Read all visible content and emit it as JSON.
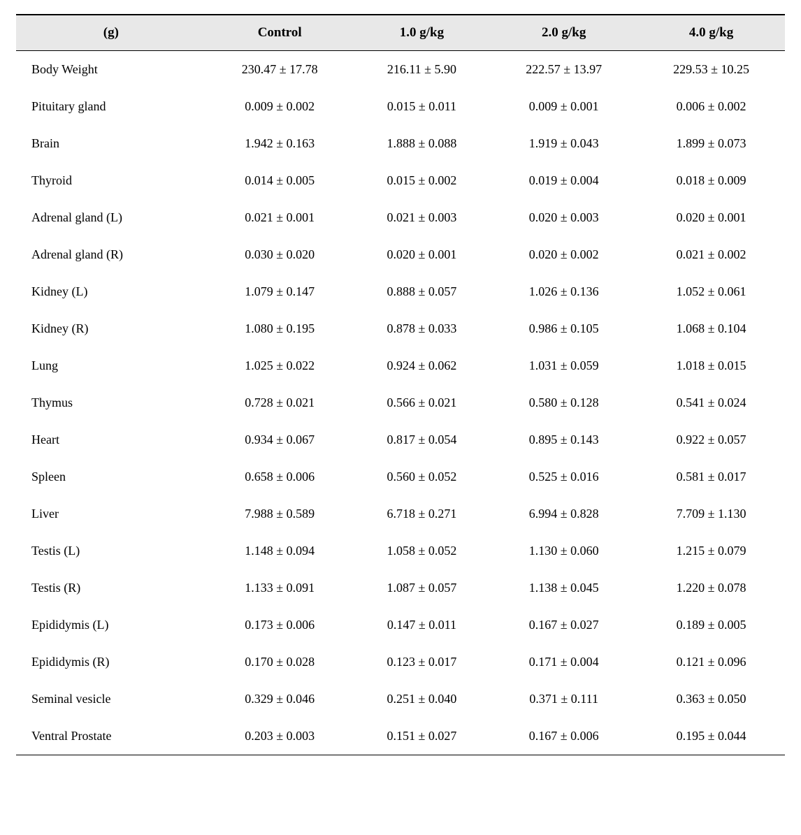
{
  "table": {
    "type": "table",
    "background_color": "#ffffff",
    "header_background": "#e8e8e8",
    "border_color": "#000000",
    "font_family": "Georgia, Times New Roman, serif",
    "header_fontsize": 19,
    "body_fontsize": 18,
    "columns": [
      "(g)",
      "Control",
      "1.0 g/kg",
      "2.0 g/kg",
      "4.0 g/kg"
    ],
    "rows": [
      {
        "label": "Body Weight",
        "values": [
          "230.47 ± 17.78",
          "216.11 ± 5.90",
          "222.57 ± 13.97",
          "229.53 ± 10.25"
        ]
      },
      {
        "label": "Pituitary gland",
        "values": [
          "0.009 ± 0.002",
          "0.015 ± 0.011",
          "0.009 ± 0.001",
          "0.006 ± 0.002"
        ]
      },
      {
        "label": "Brain",
        "values": [
          "1.942 ± 0.163",
          "1.888 ± 0.088",
          "1.919 ± 0.043",
          "1.899 ± 0.073"
        ]
      },
      {
        "label": "Thyroid",
        "values": [
          "0.014 ± 0.005",
          "0.015 ± 0.002",
          "0.019 ± 0.004",
          "0.018 ± 0.009"
        ]
      },
      {
        "label": "Adrenal gland (L)",
        "values": [
          "0.021 ± 0.001",
          "0.021 ± 0.003",
          "0.020 ± 0.003",
          "0.020 ± 0.001"
        ]
      },
      {
        "label": "Adrenal gland (R)",
        "values": [
          "0.030 ± 0.020",
          "0.020 ± 0.001",
          "0.020 ± 0.002",
          "0.021 ± 0.002"
        ]
      },
      {
        "label": "Kidney (L)",
        "values": [
          "1.079 ± 0.147",
          "0.888 ± 0.057",
          "1.026 ± 0.136",
          "1.052 ± 0.061"
        ]
      },
      {
        "label": "Kidney (R)",
        "values": [
          "1.080 ± 0.195",
          "0.878 ± 0.033",
          "0.986 ± 0.105",
          "1.068 ± 0.104"
        ]
      },
      {
        "label": "Lung",
        "values": [
          "1.025 ± 0.022",
          "0.924 ± 0.062",
          "1.031 ± 0.059",
          "1.018 ± 0.015"
        ]
      },
      {
        "label": "Thymus",
        "values": [
          "0.728 ± 0.021",
          "0.566 ± 0.021",
          "0.580 ± 0.128",
          "0.541 ± 0.024"
        ]
      },
      {
        "label": "Heart",
        "values": [
          "0.934 ± 0.067",
          "0.817 ± 0.054",
          "0.895 ± 0.143",
          "0.922 ± 0.057"
        ]
      },
      {
        "label": "Spleen",
        "values": [
          "0.658 ± 0.006",
          "0.560 ± 0.052",
          "0.525 ± 0.016",
          "0.581 ± 0.017"
        ]
      },
      {
        "label": "Liver",
        "values": [
          "7.988 ± 0.589",
          "6.718 ± 0.271",
          "6.994 ± 0.828",
          "7.709 ± 1.130"
        ]
      },
      {
        "label": "Testis (L)",
        "values": [
          "1.148 ± 0.094",
          "1.058 ± 0.052",
          "1.130 ± 0.060",
          "1.215 ± 0.079"
        ]
      },
      {
        "label": "Testis (R)",
        "values": [
          "1.133 ± 0.091",
          "1.087 ± 0.057",
          "1.138 ± 0.045",
          "1.220 ± 0.078"
        ]
      },
      {
        "label": "Epididymis (L)",
        "values": [
          "0.173 ± 0.006",
          "0.147 ± 0.011",
          "0.167 ± 0.027",
          "0.189 ± 0.005"
        ]
      },
      {
        "label": "Epididymis (R)",
        "values": [
          "0.170 ± 0.028",
          "0.123 ± 0.017",
          "0.171 ± 0.004",
          "0.121 ± 0.096"
        ]
      },
      {
        "label": "Seminal vesicle",
        "values": [
          "0.329 ± 0.046",
          "0.251 ± 0.040",
          "0.371 ± 0.111",
          "0.363 ± 0.050"
        ]
      },
      {
        "label": "Ventral Prostate",
        "values": [
          "0.203 ± 0.003",
          "0.151 ± 0.027",
          "0.167 ± 0.006",
          "0.195 ± 0.044"
        ]
      }
    ]
  }
}
